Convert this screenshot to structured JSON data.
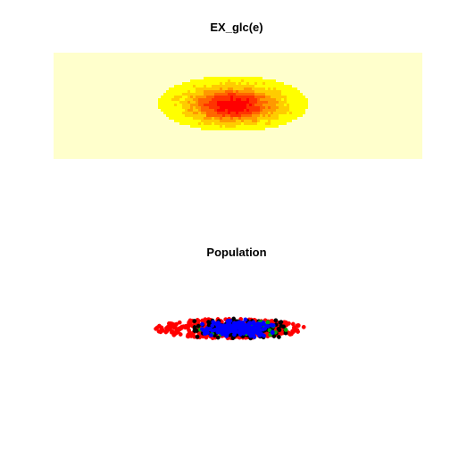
{
  "chart_data": [
    {
      "type": "heatmap",
      "title": "EX_glc(e)",
      "xlabel": "",
      "ylabel": "",
      "axes": "none",
      "legend": "none",
      "background_color": "#FFFFCC",
      "colormap": [
        "#FFFFCC",
        "#FFFF00",
        "#FFCC00",
        "#FF9900",
        "#FF6600",
        "#FF3300",
        "#FF0000"
      ],
      "blob": {
        "center_x": 0.49,
        "center_y": 0.49,
        "half_width": 0.2,
        "half_height": 0.26,
        "peak_center_x": 0.49,
        "peak_center_y": 0.5
      }
    },
    {
      "type": "scatter",
      "title": "Population",
      "xlabel": "",
      "ylabel": "",
      "axes": "none",
      "legend": "none",
      "series": [
        {
          "color": "#FF0000",
          "spread_x": 0.2,
          "spread_y": 0.2,
          "count": 420
        },
        {
          "color": "#000000",
          "spread_x": 0.13,
          "spread_y": 0.12,
          "count": 260
        },
        {
          "color": "#00AA00",
          "spread_x": 0.13,
          "spread_y": 0.1,
          "count": 30
        },
        {
          "color": "#0000FF",
          "spread_x": 0.1,
          "spread_y": 0.1,
          "count": 220
        }
      ]
    }
  ]
}
